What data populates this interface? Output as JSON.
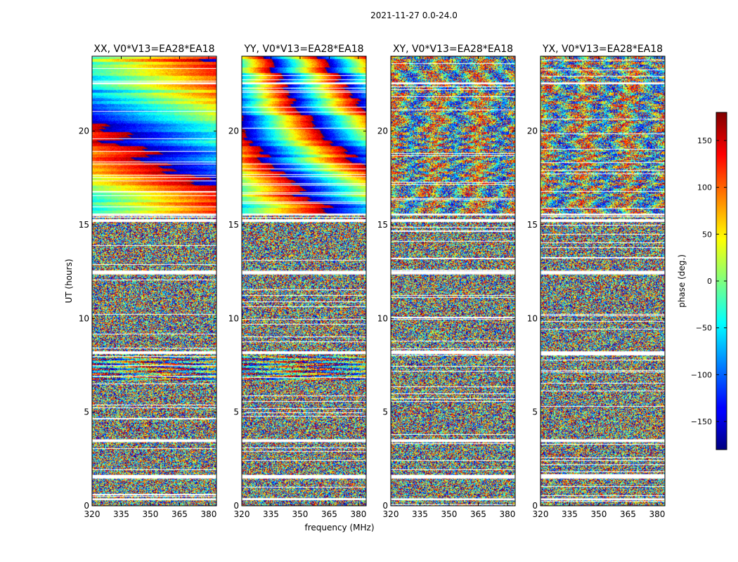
{
  "figure": {
    "suptitle": "2021-11-27 0.0-24.0",
    "xlabel": "frequency (MHz)",
    "ylabel": "UT (hours)",
    "colorbar_label": "phase (deg.)"
  },
  "chart_data": {
    "type": "heatmap",
    "panels": [
      {
        "title": "XX, V0*V13=EA28*EA18"
      },
      {
        "title": "YY, V0*V13=EA28*EA18"
      },
      {
        "title": "XY, V0*V13=EA28*EA18"
      },
      {
        "title": "YX, V0*V13=EA28*EA18"
      }
    ],
    "x_ticks": [
      320,
      335,
      350,
      365,
      380
    ],
    "x_tick_labels": [
      "320",
      "335",
      "350",
      "365",
      "380"
    ],
    "xlim": [
      320,
      384
    ],
    "y_ticks": [
      0,
      5,
      10,
      15,
      20
    ],
    "y_tick_labels": [
      "0",
      "5",
      "10",
      "15",
      "20"
    ],
    "ylim": [
      0,
      24
    ],
    "colorbar": {
      "range": [
        -180,
        180
      ],
      "ticks": [
        -150,
        -100,
        -50,
        0,
        50,
        100,
        150
      ],
      "tick_labels": [
        "−150",
        "−100",
        "−50",
        "0",
        "50",
        "100",
        "150"
      ],
      "colormap": "jet"
    },
    "ut_gaps_hours": [
      [
        0.3,
        0.4
      ],
      [
        1.45,
        1.65
      ],
      [
        3.4,
        3.55
      ],
      [
        8.1,
        8.25
      ],
      [
        12.35,
        12.55
      ],
      [
        15.15,
        15.3
      ],
      [
        15.5,
        15.6
      ],
      [
        22.5,
        22.6
      ]
    ]
  }
}
